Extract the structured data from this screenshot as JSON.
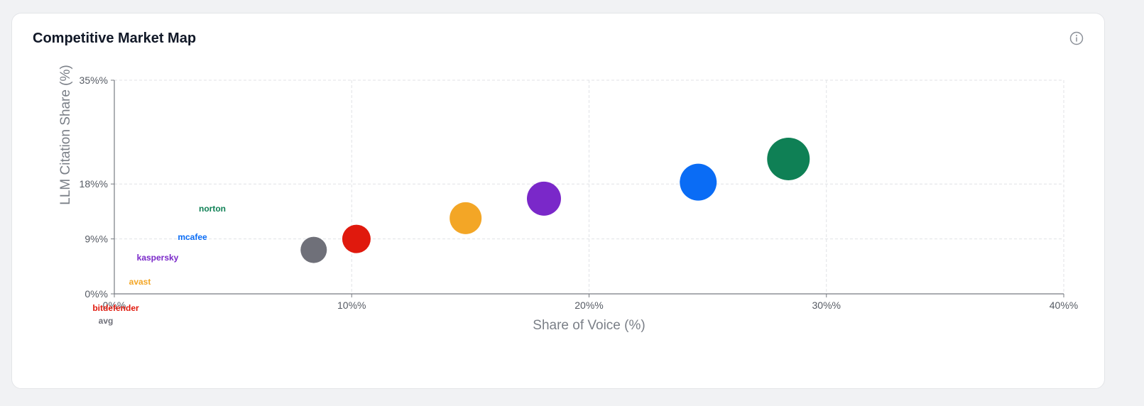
{
  "card": {
    "title": "Competitive Market Map",
    "info_icon": "info-icon"
  },
  "chart_data": {
    "type": "scatter",
    "title": "",
    "xlabel": "Share of Voice (%)",
    "ylabel": "LLM Citation Share (%)",
    "xlim": [
      0,
      40
    ],
    "ylim": [
      0,
      35
    ],
    "x_ticks": [
      0,
      10,
      20,
      30,
      40
    ],
    "x_tick_labels": [
      "0%%",
      "10%%",
      "20%%",
      "30%%",
      "40%%"
    ],
    "y_ticks": [
      0,
      9,
      18,
      35
    ],
    "y_tick_labels": [
      "0%%",
      "9%%",
      "18%%",
      "35%%"
    ],
    "grid": true,
    "legend": "labels-left",
    "series": [
      {
        "name": "norton",
        "x": 28.4,
        "y": 22.1,
        "size": 60,
        "color": "#0f8055"
      },
      {
        "name": "mcafee",
        "x": 24.6,
        "y": 18.3,
        "size": 52,
        "color": "#0a6cf5"
      },
      {
        "name": "kaspersky",
        "x": 18.1,
        "y": 15.6,
        "size": 48,
        "color": "#7a28c9"
      },
      {
        "name": "avast",
        "x": 14.8,
        "y": 12.4,
        "size": 45,
        "color": "#f3a626"
      },
      {
        "name": "bitdefender",
        "x": 10.2,
        "y": 9.0,
        "size": 40,
        "color": "#e0190d"
      },
      {
        "name": "avg",
        "x": 8.4,
        "y": 7.2,
        "size": 37,
        "color": "#6f7079"
      }
    ]
  }
}
